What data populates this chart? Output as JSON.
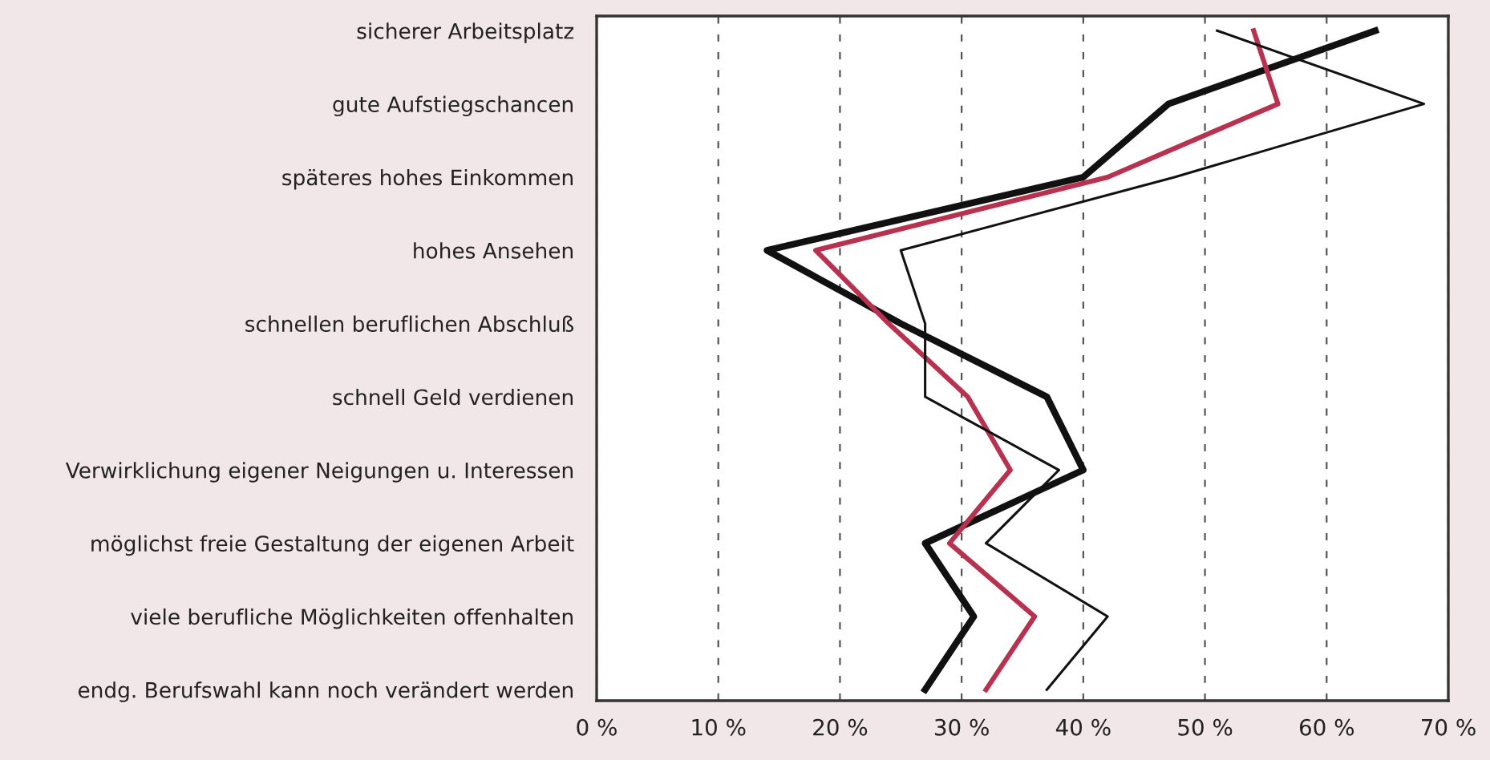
{
  "chart_data": {
    "type": "line",
    "orientation": "horizontal",
    "categories": [
      "sicherer Arbeitsplatz",
      "gute Aufstiegschancen",
      "späteres hohes Einkommen",
      "hohes Ansehen",
      "schnellen beruflichen Abschluß",
      "schnell Geld verdienen",
      "Verwirklichung eigener Neigungen u. Interessen",
      "möglichst freie Gestaltung der eigenen Arbeit",
      "viele berufliche Möglichkeiten offenhalten",
      "endg. Berufswahl kann noch verändert werden"
    ],
    "series": [
      {
        "color": "#111111",
        "values": [
          64,
          47,
          40,
          14,
          25,
          37,
          40,
          27,
          31,
          27
        ]
      },
      {
        "color": "#b8314f",
        "values": [
          54,
          56,
          42,
          18,
          24,
          30.5,
          34,
          29,
          36,
          32
        ]
      },
      {
        "color": "#111111",
        "values": [
          51,
          68,
          47.5,
          25,
          27,
          27,
          38,
          32,
          42,
          37
        ]
      }
    ],
    "xlim": [
      0,
      70
    ],
    "xticks": [
      {
        "value": 0,
        "label": "0 %"
      },
      {
        "value": 10,
        "label": "10 %"
      },
      {
        "value": 20,
        "label": "20 %"
      },
      {
        "value": 30,
        "label": "30 %"
      },
      {
        "value": 40,
        "label": "40 %"
      },
      {
        "value": 50,
        "label": "50 %"
      },
      {
        "value": 60,
        "label": "60 %"
      },
      {
        "value": 70,
        "label": "70 %"
      }
    ],
    "grid": "x",
    "marker": "none",
    "line_style": "solid",
    "legend": false
  }
}
